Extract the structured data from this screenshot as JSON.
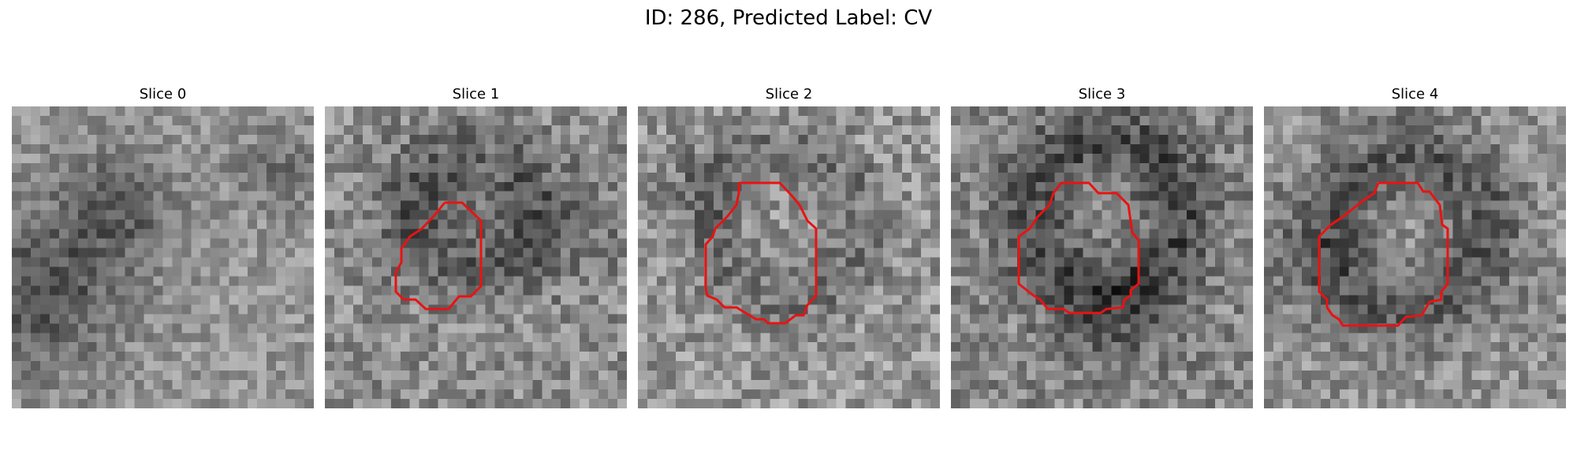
{
  "figure": {
    "title": "ID: 286, Predicted Label: CV"
  },
  "colors": {
    "contour": "#e81313",
    "background": "#ffffff",
    "text": "#000000"
  },
  "panels": [
    {
      "title": "Slice 0"
    },
    {
      "title": "Slice 1"
    },
    {
      "title": "Slice 2"
    },
    {
      "title": "Slice 3"
    },
    {
      "title": "Slice 4"
    }
  ]
}
